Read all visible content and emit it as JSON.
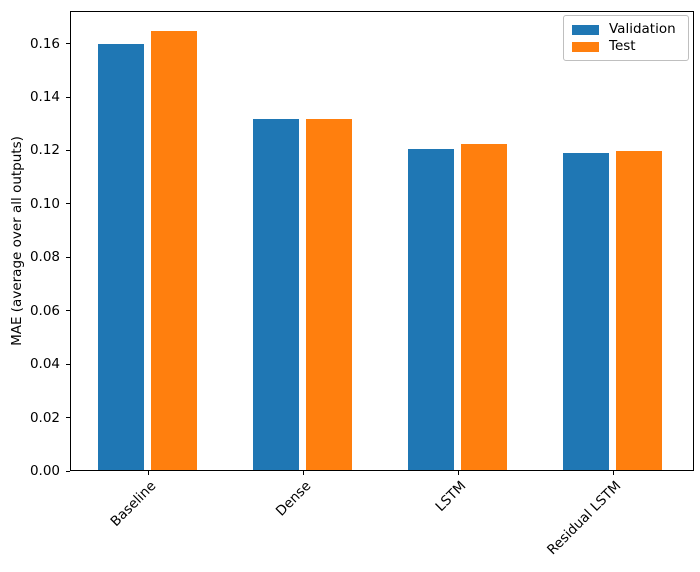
{
  "chart_data": {
    "type": "bar",
    "title": "",
    "xlabel": "",
    "ylabel": "MAE (average over all outputs)",
    "categories": [
      "Baseline",
      "Dense",
      "LSTM",
      "Residual LSTM"
    ],
    "series": [
      {
        "name": "Validation",
        "color": "#1f77b4",
        "values": [
          0.1594,
          0.1313,
          0.1203,
          0.1188
        ]
      },
      {
        "name": "Test",
        "color": "#ff7f0e",
        "values": [
          0.1645,
          0.1313,
          0.1221,
          0.1194
        ]
      }
    ],
    "ylim": [
      0,
      0.1722
    ],
    "yticks": [
      0,
      0.02,
      0.04,
      0.06,
      0.08,
      0.1,
      0.12,
      0.14,
      0.16
    ],
    "ytick_labels": [
      "0.00",
      "0.02",
      "0.04",
      "0.06",
      "0.08",
      "0.10",
      "0.12",
      "0.14",
      "0.16"
    ],
    "xtick_rotation_deg": 45,
    "grid": false,
    "legend_position": "upper right"
  }
}
